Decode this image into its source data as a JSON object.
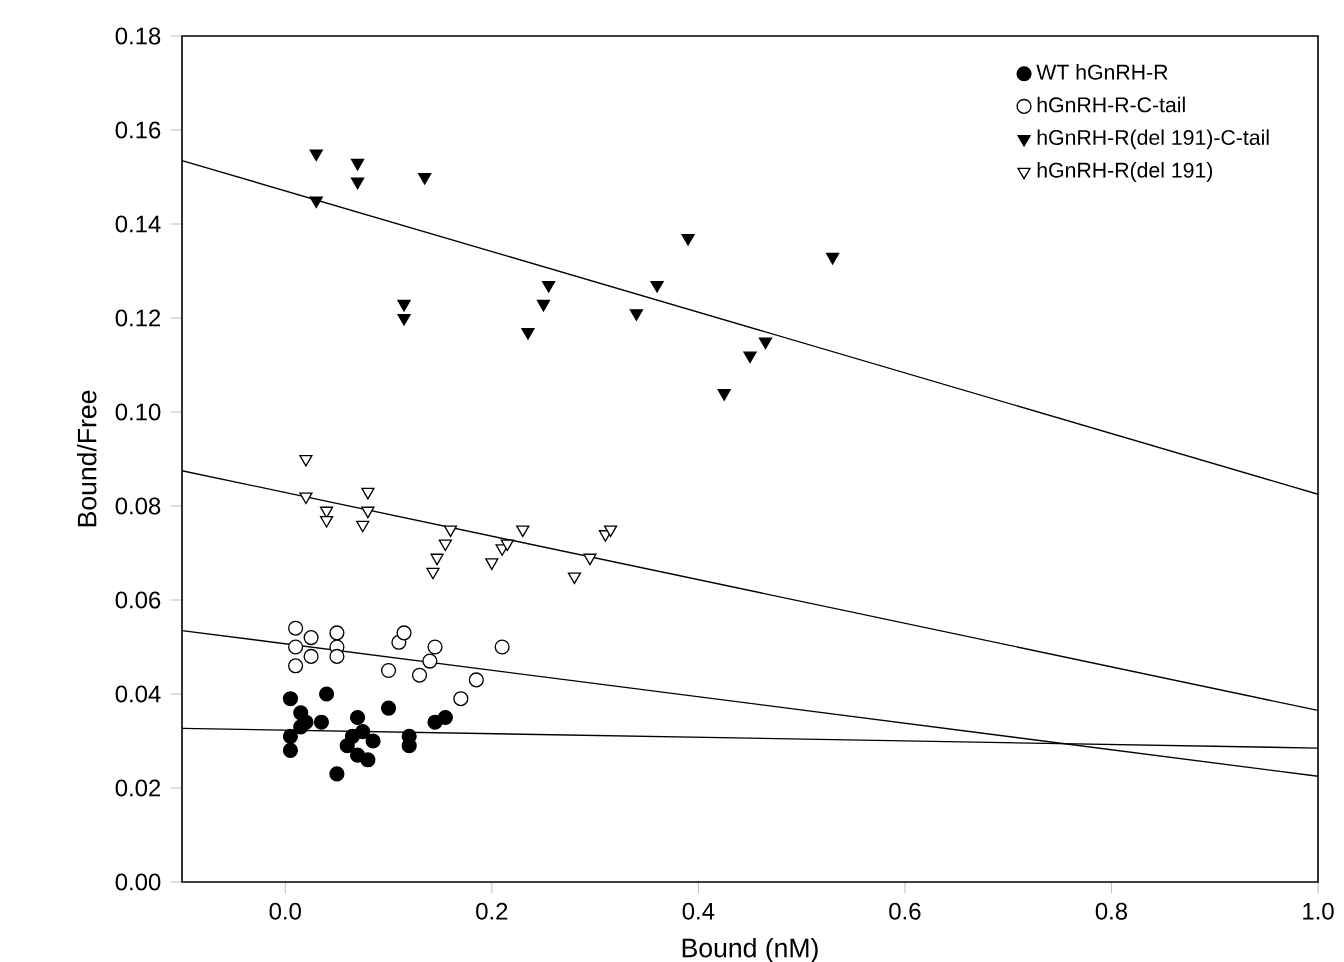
{
  "chart_data": {
    "type": "scatter",
    "xlabel": "Bound (nM)",
    "ylabel": "Bound/Free",
    "xlim": [
      -0.1,
      1.0
    ],
    "ylim": [
      0,
      0.18
    ],
    "xticks": [
      {
        "value": 0,
        "label": "0.0"
      },
      {
        "value": 0.2,
        "label": "0.2"
      },
      {
        "value": 0.4,
        "label": "0.4"
      },
      {
        "value": 0.6,
        "label": "0.6"
      },
      {
        "value": 0.8,
        "label": "0.8"
      },
      {
        "value": 1.0,
        "label": "1.0"
      }
    ],
    "yticks": [
      {
        "value": 0,
        "label": "0.00"
      },
      {
        "value": 0.02,
        "label": "0.02"
      },
      {
        "value": 0.04,
        "label": "0.04"
      },
      {
        "value": 0.06,
        "label": "0.06"
      },
      {
        "value": 0.08,
        "label": "0.08"
      },
      {
        "value": 0.1,
        "label": "0.10"
      },
      {
        "value": 0.12,
        "label": "0.12"
      },
      {
        "value": 0.14,
        "label": "0.14"
      },
      {
        "value": 0.16,
        "label": "0.16"
      },
      {
        "value": 0.18,
        "label": "0.18"
      }
    ],
    "grid": false,
    "legend": "top right",
    "series": [
      {
        "name": "WT hGnRH-R",
        "color": "#000000",
        "marker": "circle",
        "x": [
          0.005,
          0.005,
          0.005,
          0.015,
          0.015,
          0.02,
          0.04,
          0.035,
          0.05,
          0.06,
          0.065,
          0.07,
          0.07,
          0.075,
          0.08,
          0.085,
          0.1,
          0.12,
          0.12,
          0.145,
          0.155
        ],
        "values": [
          0.039,
          0.031,
          0.028,
          0.036,
          0.033,
          0.034,
          0.04,
          0.034,
          0.023,
          0.029,
          0.031,
          0.035,
          0.027,
          0.032,
          0.026,
          0.03,
          0.037,
          0.031,
          0.029,
          0.034,
          0.035
        ]
      },
      {
        "name": "hGnRH-R-C-tail",
        "color": "#ffffff",
        "marker": "circle",
        "x": [
          0.01,
          0.01,
          0.01,
          0.025,
          0.025,
          0.05,
          0.05,
          0.05,
          0.1,
          0.11,
          0.115,
          0.13,
          0.14,
          0.145,
          0.17,
          0.185,
          0.21
        ],
        "values": [
          0.054,
          0.05,
          0.046,
          0.052,
          0.048,
          0.053,
          0.05,
          0.048,
          0.045,
          0.051,
          0.053,
          0.044,
          0.047,
          0.05,
          0.039,
          0.043,
          0.05
        ]
      },
      {
        "name": "hGnRH-R(del 191)-C-tail",
        "color": "#000000",
        "marker": "triangle",
        "x": [
          0.03,
          0.03,
          0.07,
          0.07,
          0.135,
          0.115,
          0.115,
          0.255,
          0.25,
          0.235,
          0.34,
          0.36,
          0.39,
          0.425,
          0.45,
          0.465,
          0.53
        ],
        "values": [
          0.155,
          0.145,
          0.153,
          0.149,
          0.15,
          0.123,
          0.12,
          0.127,
          0.123,
          0.117,
          0.121,
          0.127,
          0.137,
          0.104,
          0.112,
          0.115,
          0.133
        ]
      },
      {
        "name": "hGnRH-R(del 191)",
        "color": "#ffffff",
        "marker": "triangle",
        "x": [
          0.02,
          0.02,
          0.04,
          0.04,
          0.075,
          0.08,
          0.08,
          0.147,
          0.143,
          0.155,
          0.16,
          0.2,
          0.21,
          0.215,
          0.23,
          0.28,
          0.295,
          0.31,
          0.315
        ],
        "values": [
          0.09,
          0.082,
          0.079,
          0.077,
          0.076,
          0.083,
          0.079,
          0.069,
          0.066,
          0.072,
          0.075,
          0.068,
          0.071,
          0.072,
          0.075,
          0.065,
          0.069,
          0.074,
          0.075
        ]
      },
      {
        "type": "line",
        "color": "#000000",
        "marker": "none",
        "x": [
          -0.1,
          1.0
        ],
        "values": [
          0.0327,
          0.0285
        ]
      },
      {
        "type": "line",
        "color": "#000000",
        "marker": "none",
        "x": [
          -0.1,
          1.0
        ],
        "values": [
          0.0535,
          0.0225
        ]
      },
      {
        "type": "line",
        "color": "#000000",
        "marker": "none",
        "x": [
          -0.1,
          1.0
        ],
        "values": [
          0.0875,
          0.0365
        ]
      },
      {
        "type": "line",
        "color": "#000000",
        "marker": "none",
        "x": [
          -0.1,
          1.0
        ],
        "values": [
          0.1535,
          0.0825
        ]
      }
    ]
  }
}
